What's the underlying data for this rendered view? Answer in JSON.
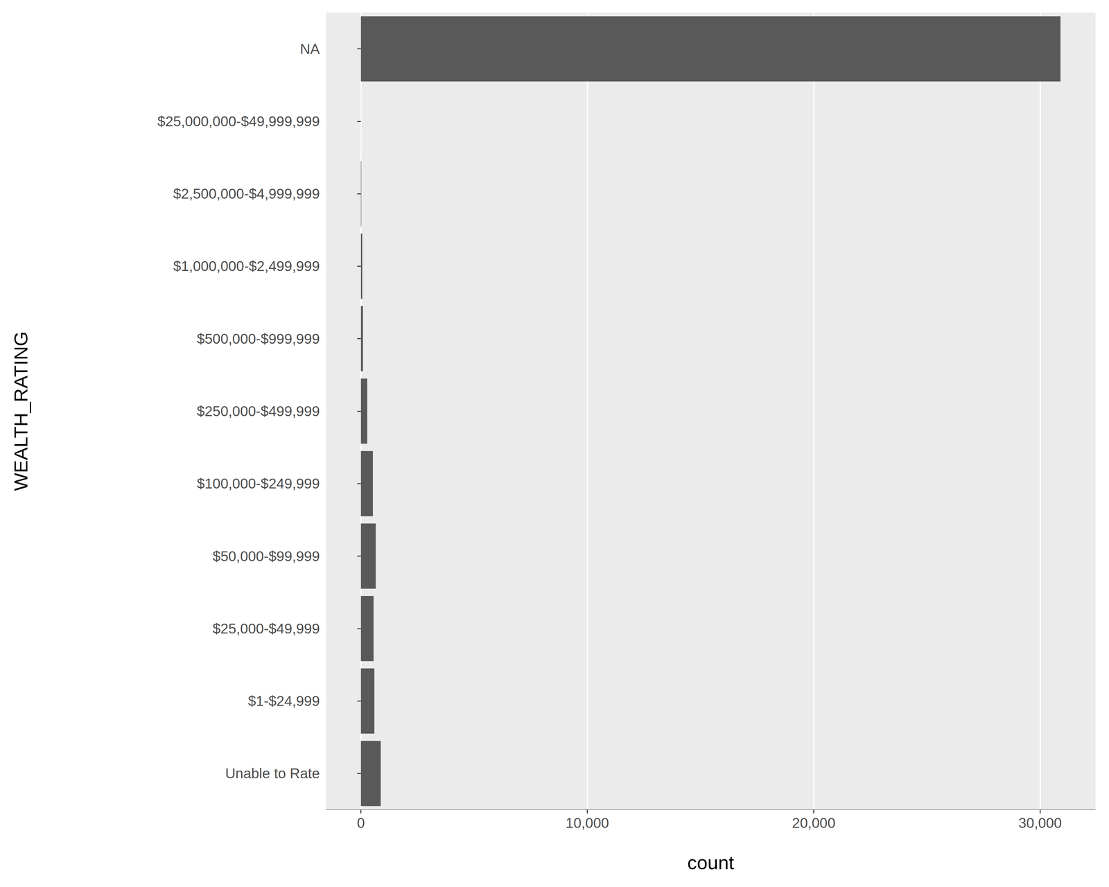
{
  "chart_data": {
    "type": "bar",
    "orientation": "horizontal",
    "categories": [
      "Unable to Rate",
      "$1-$24,999",
      "$25,000-$49,999",
      "$50,000-$99,999",
      "$100,000-$249,999",
      "$250,000-$499,999",
      "$500,000-$999,999",
      "$1,000,000-$2,499,999",
      "$2,500,000-$4,999,999",
      "$25,000,000-$49,999,999",
      "NA"
    ],
    "values": [
      875,
      595,
      560,
      655,
      530,
      280,
      90,
      60,
      20,
      2,
      30900
    ],
    "color": "#595959",
    "x_label": "count",
    "y_label": "WEALTH_RATING",
    "xlim": [
      -1545,
      32445
    ],
    "xticks": [
      0,
      {
        "value": 10000,
        "label": "10,000"
      },
      {
        "value": 20000,
        "label": "20,000"
      },
      {
        "value": 30000,
        "label": "30,000"
      }
    ],
    "grid": true
  }
}
